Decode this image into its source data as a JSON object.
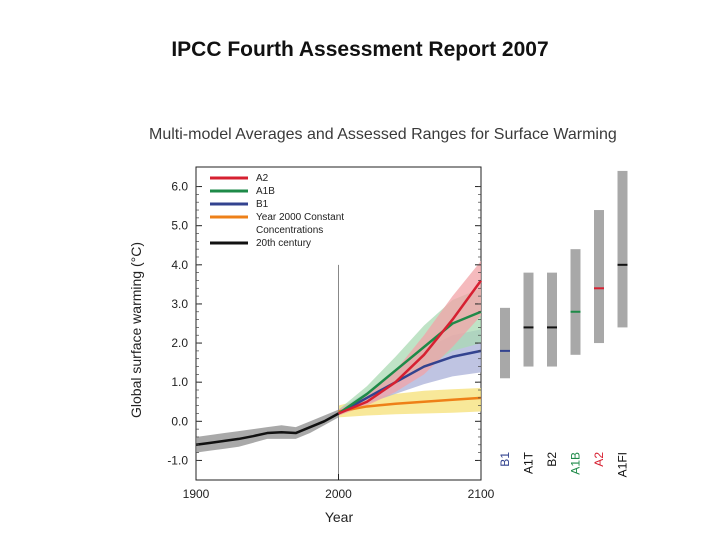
{
  "slide": {
    "title": "IPCC Fourth Assessment Report 2007"
  },
  "chart_data": {
    "type": "line",
    "title": "Multi-model Averages and Assessed Ranges for Surface Warming",
    "xlabel": "Year",
    "ylabel": "Global surface warming (°C)",
    "xlim": [
      1900,
      2100
    ],
    "ylim": [
      -1.0,
      6.0
    ],
    "x_ticks": [
      "1900",
      "2000",
      "2100"
    ],
    "y_ticks": [
      "6.0",
      "5.0",
      "4.0",
      "3.0",
      "2.0",
      "1.0",
      "0.0",
      "-1.0"
    ],
    "grid": false,
    "legend_position": "top-left",
    "colors": {
      "A2": "#d62031",
      "A1B": "#1e8a48",
      "B1": "#33438f",
      "const": "#ee8018",
      "hist": "#111111"
    },
    "series": [
      {
        "name": "A2",
        "color": "#d62031",
        "band_color": "#f2a3a7",
        "x": [
          2000,
          2020,
          2040,
          2060,
          2080,
          2100
        ],
        "y": [
          0.2,
          0.5,
          1.0,
          1.7,
          2.6,
          3.6
        ],
        "y_low": [
          0.15,
          0.4,
          0.75,
          1.2,
          1.9,
          2.7
        ],
        "y_high": [
          0.3,
          0.65,
          1.3,
          2.2,
          3.2,
          4.1
        ]
      },
      {
        "name": "A1B",
        "color": "#1e8a48",
        "band_color": "#a9d9b3",
        "x": [
          2000,
          2020,
          2040,
          2060,
          2080,
          2100
        ],
        "y": [
          0.2,
          0.7,
          1.3,
          1.9,
          2.5,
          2.8
        ],
        "y_low": [
          0.15,
          0.5,
          0.95,
          1.35,
          1.8,
          2.0
        ],
        "y_high": [
          0.3,
          0.9,
          1.65,
          2.45,
          3.1,
          3.4
        ]
      },
      {
        "name": "B1",
        "color": "#33438f",
        "band_color": "#aab0d8",
        "x": [
          2000,
          2020,
          2040,
          2060,
          2080,
          2100
        ],
        "y": [
          0.2,
          0.6,
          1.0,
          1.4,
          1.65,
          1.8
        ],
        "y_low": [
          0.15,
          0.45,
          0.7,
          0.95,
          1.15,
          1.25
        ],
        "y_high": [
          0.3,
          0.75,
          1.3,
          1.85,
          2.2,
          2.35
        ]
      },
      {
        "name": "Year 2000 Constant Concentrations",
        "color": "#ee8018",
        "band_color": "#f5e077",
        "x": [
          2000,
          2020,
          2040,
          2060,
          2080,
          2100
        ],
        "y": [
          0.25,
          0.38,
          0.45,
          0.5,
          0.55,
          0.6
        ],
        "y_low": [
          0.1,
          0.15,
          0.18,
          0.2,
          0.22,
          0.25
        ],
        "y_high": [
          0.4,
          0.6,
          0.7,
          0.78,
          0.82,
          0.85
        ]
      },
      {
        "name": "20th century",
        "color": "#111111",
        "band_color": "#8c8c8c",
        "x": [
          1900,
          1910,
          1920,
          1930,
          1940,
          1950,
          1960,
          1970,
          1980,
          1990,
          2000
        ],
        "y": [
          -0.6,
          -0.55,
          -0.5,
          -0.45,
          -0.38,
          -0.3,
          -0.28,
          -0.3,
          -0.15,
          0.0,
          0.2
        ],
        "y_low": [
          -0.8,
          -0.75,
          -0.7,
          -0.65,
          -0.55,
          -0.45,
          -0.45,
          -0.45,
          -0.3,
          -0.1,
          0.1
        ],
        "y_high": [
          -0.4,
          -0.35,
          -0.3,
          -0.25,
          -0.2,
          -0.15,
          -0.1,
          -0.15,
          0.0,
          0.15,
          0.3
        ]
      }
    ],
    "legend": [
      {
        "label": "A2",
        "color": "#d62031"
      },
      {
        "label": "A1B",
        "color": "#1e8a48"
      },
      {
        "label": "B1",
        "color": "#33438f"
      },
      {
        "label": "Year 2000 Constant",
        "label2": "Concentrations",
        "color": "#ee8018"
      },
      {
        "label": "20th century",
        "color": "#111111"
      }
    ],
    "assessed_ranges": [
      {
        "label": "B1",
        "low": 1.1,
        "high": 2.9,
        "best": 1.8,
        "color": "#33438f"
      },
      {
        "label": "A1T",
        "low": 1.4,
        "high": 3.8,
        "best": 2.4,
        "color": "#111111"
      },
      {
        "label": "B2",
        "low": 1.4,
        "high": 3.8,
        "best": 2.4,
        "color": "#111111"
      },
      {
        "label": "A1B",
        "low": 1.7,
        "high": 4.4,
        "best": 2.8,
        "color": "#1e8a48"
      },
      {
        "label": "A2",
        "low": 2.0,
        "high": 5.4,
        "best": 3.4,
        "color": "#d62031"
      },
      {
        "label": "A1FI",
        "low": 2.4,
        "high": 6.4,
        "best": 4.0,
        "color": "#111111"
      }
    ]
  }
}
